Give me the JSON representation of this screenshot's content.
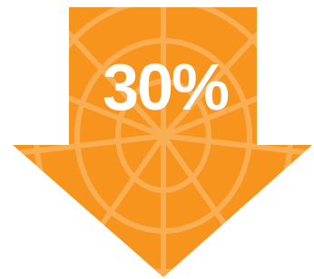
{
  "badge": {
    "label": "30%"
  }
}
